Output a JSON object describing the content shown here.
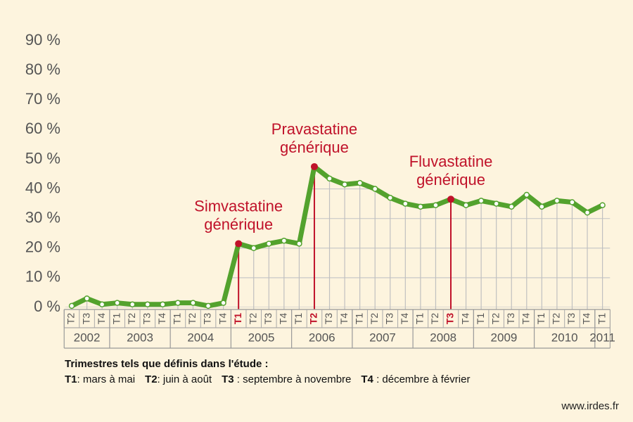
{
  "chart_data": {
    "type": "line",
    "categories": [
      "T2",
      "T3",
      "T4",
      "T1",
      "T2",
      "T3",
      "T4",
      "T1",
      "T2",
      "T3",
      "T4",
      "T1",
      "T2",
      "T3",
      "T4",
      "T1",
      "T2",
      "T3",
      "T4",
      "T1",
      "T2",
      "T3",
      "T4",
      "T1",
      "T2",
      "T3",
      "T4",
      "T1",
      "T2",
      "T3",
      "T4",
      "T1",
      "T2",
      "T3",
      "T4",
      "T1"
    ],
    "years": [
      {
        "label": "2002",
        "quarters": 3
      },
      {
        "label": "2003",
        "quarters": 4
      },
      {
        "label": "2004",
        "quarters": 4
      },
      {
        "label": "2005",
        "quarters": 4
      },
      {
        "label": "2006",
        "quarters": 4
      },
      {
        "label": "2007",
        "quarters": 4
      },
      {
        "label": "2008",
        "quarters": 4
      },
      {
        "label": "2009",
        "quarters": 4
      },
      {
        "label": "2010",
        "quarters": 4
      },
      {
        "label": "2011",
        "quarters": 1
      }
    ],
    "series": [
      {
        "color": "#53a22d",
        "values": [
          0.5,
          3,
          1,
          1.5,
          1,
          1,
          1,
          1.5,
          1.5,
          0.5,
          1.5,
          21.5,
          20,
          21.5,
          22.5,
          21.5,
          47.5,
          43.5,
          41.5,
          42,
          40,
          37,
          35,
          34,
          34.5,
          36.5,
          34.5,
          36,
          35,
          34,
          38,
          34,
          36,
          35.5,
          32,
          34.5
        ]
      }
    ],
    "annotations": [
      {
        "lines": [
          "Simvastatine",
          "générique"
        ],
        "at": 11,
        "color": "#c0122a"
      },
      {
        "lines": [
          "Pravastatine",
          "générique"
        ],
        "at": 16,
        "color": "#c0122a"
      },
      {
        "lines": [
          "Fluvastatine",
          "générique"
        ],
        "at": 25,
        "color": "#c0122a"
      }
    ],
    "ylim": [
      0,
      90
    ],
    "yticks": [
      {
        "value": 0,
        "label": "0 %"
      },
      {
        "value": 10,
        "label": "10 %"
      },
      {
        "value": 20,
        "label": "20 %"
      },
      {
        "value": 30,
        "label": "30 %"
      },
      {
        "value": 40,
        "label": "40 %"
      },
      {
        "value": 50,
        "label": "50 %"
      },
      {
        "value": 60,
        "label": "60 %"
      },
      {
        "value": 70,
        "label": "70 %"
      },
      {
        "value": 80,
        "label": "80 %"
      },
      {
        "value": 90,
        "label": "90 %"
      }
    ],
    "grid": true,
    "notes": {
      "title": "Trimestres tels que définis dans l'étude :",
      "items": [
        {
          "key": "T1",
          "text": ": mars à mai"
        },
        {
          "key": "T2",
          "text": ": juin à août"
        },
        {
          "key": "T3",
          "text": " : septembre à novembre"
        },
        {
          "key": "T4",
          "text": " : décembre à février"
        }
      ]
    },
    "source": "www.irdes.fr"
  }
}
